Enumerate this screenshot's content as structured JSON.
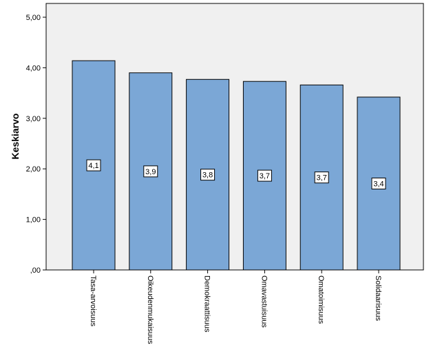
{
  "chart_data": {
    "type": "bar",
    "categories": [
      "Tasa-arvoisuus",
      "Oikeudenmukaisuus",
      "Demokraattisuus",
      "Omavastuisuus",
      "Omatoimisuus",
      "Solidaarisuus"
    ],
    "values": [
      4.14,
      3.9,
      3.77,
      3.73,
      3.66,
      3.42
    ],
    "data_labels": [
      "4,1",
      "3,9",
      "3,8",
      "3,7",
      "3,7",
      "3,4"
    ],
    "ylabel": "Keskiarvo",
    "xlabel": "",
    "ylim": [
      0,
      5
    ],
    "yticks": [
      0,
      1,
      2,
      3,
      4,
      5
    ],
    "ytick_labels": [
      ",00",
      "1,00",
      "2,00",
      "3,00",
      "4,00",
      "5,00"
    ],
    "grid": false,
    "colors": {
      "bar_fill": "#7BA7D6",
      "bar_stroke": "#000000",
      "plot_background": "#F0F0F0"
    }
  }
}
